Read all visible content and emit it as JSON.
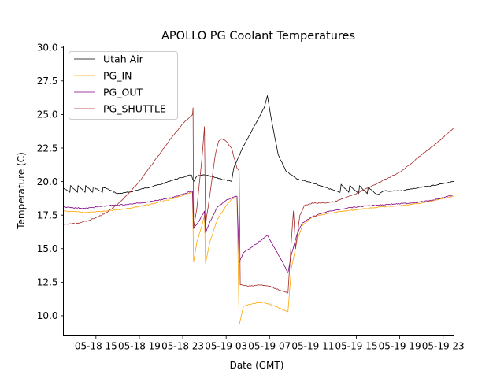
{
  "chart_data": {
    "type": "line",
    "title": "APOLLO PG Coolant Temperatures",
    "xlabel": "Date (GMT)",
    "ylabel": "Temperature (C)",
    "x_unit": "hours since 05-18 12:00 GMT",
    "xlim": [
      0,
      36
    ],
    "ylim": [
      8.5,
      30.1
    ],
    "x_ticks": [
      {
        "value": 3,
        "label": "05-18 15"
      },
      {
        "value": 7,
        "label": "05-18 19"
      },
      {
        "value": 11,
        "label": "05-18 23"
      },
      {
        "value": 15,
        "label": "05-19 03"
      },
      {
        "value": 19,
        "label": "05-19 07"
      },
      {
        "value": 23,
        "label": "05-19 11"
      },
      {
        "value": 27,
        "label": "05-19 15"
      },
      {
        "value": 31,
        "label": "05-19 19"
      },
      {
        "value": 35,
        "label": "05-19 23"
      }
    ],
    "y_ticks": [
      {
        "value": 10.0,
        "label": "10.0"
      },
      {
        "value": 12.5,
        "label": "12.5"
      },
      {
        "value": 15.0,
        "label": "15.0"
      },
      {
        "value": 17.5,
        "label": "17.5"
      },
      {
        "value": 20.0,
        "label": "20.0"
      },
      {
        "value": 22.5,
        "label": "22.5"
      },
      {
        "value": 25.0,
        "label": "25.0"
      },
      {
        "value": 27.5,
        "label": "27.5"
      },
      {
        "value": 30.0,
        "label": "30.0"
      }
    ],
    "grid": false,
    "legend_position": "top-left",
    "series": [
      {
        "name": "Utah Air",
        "color": "#000000",
        "points": [
          [
            0,
            19.5
          ],
          [
            0.6,
            19.2
          ],
          [
            0.65,
            19.7
          ],
          [
            1.3,
            19.2
          ],
          [
            1.35,
            19.7
          ],
          [
            2.0,
            19.2
          ],
          [
            2.05,
            19.7
          ],
          [
            2.7,
            19.2
          ],
          [
            2.75,
            19.6
          ],
          [
            3.6,
            19.2
          ],
          [
            3.65,
            19.6
          ],
          [
            5.0,
            19.1
          ],
          [
            6.0,
            19.2
          ],
          [
            7.0,
            19.4
          ],
          [
            8.0,
            19.6
          ],
          [
            9.0,
            19.8
          ],
          [
            10.0,
            20.1
          ],
          [
            11.8,
            20.5
          ],
          [
            12.0,
            20.0
          ],
          [
            12.3,
            20.4
          ],
          [
            13.0,
            20.5
          ],
          [
            14.0,
            20.3
          ],
          [
            15.5,
            20.0
          ],
          [
            15.7,
            21.0
          ],
          [
            16.5,
            22.5
          ],
          [
            17.5,
            24.0
          ],
          [
            18.5,
            25.5
          ],
          [
            18.8,
            26.4
          ],
          [
            19.2,
            24.5
          ],
          [
            19.8,
            22.0
          ],
          [
            20.5,
            20.8
          ],
          [
            21.0,
            20.5
          ],
          [
            21.5,
            20.2
          ],
          [
            22.5,
            20.0
          ],
          [
            24.0,
            19.6
          ],
          [
            25.5,
            19.2
          ],
          [
            25.6,
            19.8
          ],
          [
            26.3,
            19.2
          ],
          [
            26.4,
            19.7
          ],
          [
            27.2,
            19.1
          ],
          [
            27.3,
            19.7
          ],
          [
            28.0,
            19.1
          ],
          [
            28.1,
            19.6
          ],
          [
            28.9,
            19.0
          ],
          [
            29.5,
            19.3
          ],
          [
            31.0,
            19.3
          ],
          [
            32.5,
            19.5
          ],
          [
            34.0,
            19.7
          ],
          [
            36.0,
            20.0
          ]
        ]
      },
      {
        "name": "PG_IN",
        "color": "#ffa500",
        "points": [
          [
            0,
            17.8
          ],
          [
            2.0,
            17.7
          ],
          [
            4.0,
            17.8
          ],
          [
            6.0,
            18.0
          ],
          [
            8.0,
            18.3
          ],
          [
            10.0,
            18.7
          ],
          [
            11.9,
            19.2
          ],
          [
            12.0,
            14.0
          ],
          [
            12.3,
            15.5
          ],
          [
            12.8,
            16.8
          ],
          [
            13.0,
            17.5
          ],
          [
            13.1,
            13.9
          ],
          [
            13.5,
            15.5
          ],
          [
            14.2,
            17.2
          ],
          [
            15.0,
            18.2
          ],
          [
            15.5,
            18.7
          ],
          [
            16.0,
            18.8
          ],
          [
            16.2,
            9.3
          ],
          [
            16.6,
            10.7
          ],
          [
            17.5,
            10.9
          ],
          [
            18.5,
            11.0
          ],
          [
            19.5,
            10.7
          ],
          [
            20.7,
            10.3
          ],
          [
            21.0,
            13.5
          ],
          [
            21.5,
            15.5
          ],
          [
            22.0,
            16.7
          ],
          [
            23.0,
            17.4
          ],
          [
            25.0,
            17.7
          ],
          [
            27.0,
            17.9
          ],
          [
            29.0,
            18.1
          ],
          [
            31.0,
            18.2
          ],
          [
            33.0,
            18.4
          ],
          [
            36.0,
            18.9
          ]
        ]
      },
      {
        "name": "PG_OUT",
        "color": "#800080",
        "points": [
          [
            0,
            18.1
          ],
          [
            2.0,
            18.0
          ],
          [
            4.0,
            18.2
          ],
          [
            6.0,
            18.3
          ],
          [
            8.0,
            18.5
          ],
          [
            10.0,
            18.8
          ],
          [
            11.9,
            19.3
          ],
          [
            12.0,
            16.5
          ],
          [
            12.3,
            16.8
          ],
          [
            12.8,
            17.5
          ],
          [
            13.0,
            17.8
          ],
          [
            13.1,
            16.2
          ],
          [
            13.5,
            17.0
          ],
          [
            14.2,
            18.1
          ],
          [
            15.0,
            18.6
          ],
          [
            15.5,
            18.8
          ],
          [
            16.0,
            18.9
          ],
          [
            16.2,
            14.0
          ],
          [
            16.6,
            14.7
          ],
          [
            17.5,
            15.2
          ],
          [
            18.5,
            15.8
          ],
          [
            18.8,
            16.0
          ],
          [
            19.5,
            15.0
          ],
          [
            20.2,
            14.0
          ],
          [
            20.7,
            13.2
          ],
          [
            21.0,
            14.5
          ],
          [
            21.5,
            16.0
          ],
          [
            22.0,
            16.9
          ],
          [
            23.0,
            17.4
          ],
          [
            24.5,
            17.8
          ],
          [
            26.0,
            18.0
          ],
          [
            28.0,
            18.2
          ],
          [
            30.0,
            18.3
          ],
          [
            32.0,
            18.4
          ],
          [
            34.0,
            18.6
          ],
          [
            36.0,
            19.0
          ]
        ]
      },
      {
        "name": "PG_SHUTTLE",
        "color": "#a52a2a",
        "points": [
          [
            0,
            16.8
          ],
          [
            1.5,
            16.9
          ],
          [
            3.0,
            17.3
          ],
          [
            4.0,
            17.7
          ],
          [
            5.0,
            18.3
          ],
          [
            6.0,
            19.1
          ],
          [
            7.0,
            20.0
          ],
          [
            8.0,
            21.1
          ],
          [
            9.0,
            22.2
          ],
          [
            10.0,
            23.3
          ],
          [
            11.0,
            24.3
          ],
          [
            11.9,
            25.0
          ],
          [
            11.95,
            25.5
          ],
          [
            12.0,
            16.5
          ],
          [
            12.3,
            18.0
          ],
          [
            12.8,
            22.0
          ],
          [
            13.0,
            24.1
          ],
          [
            13.1,
            16.8
          ],
          [
            13.5,
            19.0
          ],
          [
            14.0,
            22.0
          ],
          [
            14.3,
            23.0
          ],
          [
            14.6,
            23.2
          ],
          [
            15.0,
            23.0
          ],
          [
            15.5,
            22.5
          ],
          [
            16.0,
            21.0
          ],
          [
            16.2,
            20.8
          ],
          [
            16.3,
            12.3
          ],
          [
            17.0,
            12.2
          ],
          [
            18.0,
            12.3
          ],
          [
            19.0,
            12.2
          ],
          [
            20.0,
            11.9
          ],
          [
            20.7,
            11.7
          ],
          [
            21.0,
            15.5
          ],
          [
            21.2,
            17.8
          ],
          [
            21.4,
            15.0
          ],
          [
            21.8,
            17.5
          ],
          [
            22.2,
            18.2
          ],
          [
            23.0,
            18.4
          ],
          [
            24.0,
            18.4
          ],
          [
            25.0,
            18.5
          ],
          [
            26.0,
            18.8
          ],
          [
            27.0,
            19.1
          ],
          [
            28.0,
            19.5
          ],
          [
            29.0,
            19.9
          ],
          [
            30.0,
            20.3
          ],
          [
            31.0,
            20.7
          ],
          [
            32.0,
            21.3
          ],
          [
            33.0,
            22.0
          ],
          [
            34.0,
            22.6
          ],
          [
            35.0,
            23.3
          ],
          [
            36.0,
            24.0
          ]
        ]
      }
    ]
  }
}
